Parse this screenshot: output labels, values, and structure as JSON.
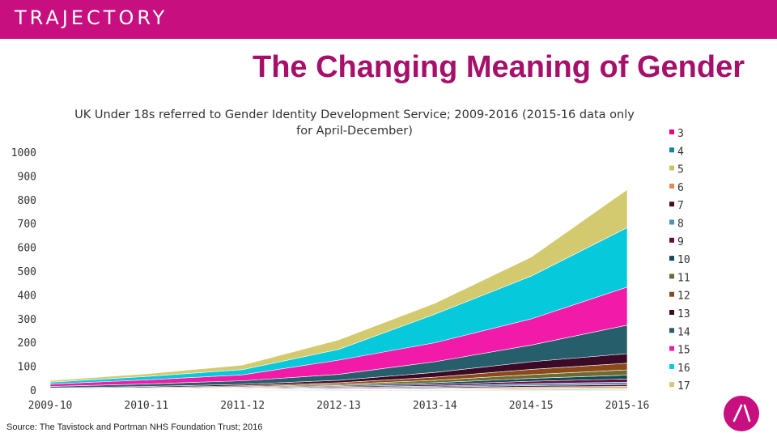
{
  "brand": {
    "name": "TRAJECTORY"
  },
  "page": {
    "title": "The Changing Meaning of Gender"
  },
  "source": "Source: The Tavistock and Portman NHS Foundation Trust; 2016",
  "colors": {
    "topbar": "#c80f7f",
    "title": "#a6106b"
  },
  "chart_data": {
    "type": "area",
    "stacked": true,
    "title": "UK Under 18s referred to Gender Identity Development Service; 2009-2016 (2015-16 data only for April-December)",
    "categories": [
      "2009-10",
      "2010-11",
      "2011-12",
      "2012-13",
      "2013-14",
      "2014-15",
      "2015-16"
    ],
    "xlabel": "",
    "ylabel": "",
    "ylim": [
      0,
      1000
    ],
    "yticks": [
      0,
      100,
      200,
      300,
      400,
      500,
      600,
      700,
      800,
      900,
      1000
    ],
    "grid": false,
    "legend_position": "right",
    "series": [
      {
        "name": "3",
        "color": "#e6007e",
        "values": [
          0,
          0,
          0,
          1,
          1,
          1,
          2
        ]
      },
      {
        "name": "4",
        "color": "#17869b",
        "values": [
          0,
          0,
          0,
          1,
          2,
          3,
          3
        ]
      },
      {
        "name": "5",
        "color": "#c9c26a",
        "values": [
          0,
          0,
          1,
          1,
          2,
          4,
          5
        ]
      },
      {
        "name": "6",
        "color": "#e08a54",
        "values": [
          0,
          1,
          1,
          2,
          3,
          5,
          6
        ]
      },
      {
        "name": "7",
        "color": "#4a0c2b",
        "values": [
          1,
          1,
          2,
          3,
          4,
          6,
          7
        ]
      },
      {
        "name": "8",
        "color": "#4f93b9",
        "values": [
          1,
          1,
          2,
          3,
          5,
          8,
          10
        ]
      },
      {
        "name": "9",
        "color": "#6b0b3f",
        "values": [
          1,
          1,
          2,
          4,
          6,
          10,
          14
        ]
      },
      {
        "name": "10",
        "color": "#0e4c5a",
        "values": [
          1,
          2,
          3,
          4,
          8,
          12,
          16
        ]
      },
      {
        "name": "11",
        "color": "#6f6a2f",
        "values": [
          1,
          2,
          3,
          5,
          10,
          16,
          22
        ]
      },
      {
        "name": "12",
        "color": "#8a4a1a",
        "values": [
          2,
          3,
          4,
          7,
          13,
          22,
          28
        ]
      },
      {
        "name": "13",
        "color": "#3c0a26",
        "values": [
          2,
          4,
          6,
          10,
          20,
          32,
          40
        ]
      },
      {
        "name": "14",
        "color": "#275e6c",
        "values": [
          6,
          11,
          15,
          25,
          45,
          70,
          120
        ]
      },
      {
        "name": "15",
        "color": "#f21aa8",
        "values": [
          10,
          17,
          25,
          60,
          80,
          110,
          160
        ]
      },
      {
        "name": "16",
        "color": "#06c9dc",
        "values": [
          8,
          14,
          22,
          45,
          120,
          180,
          250
        ]
      },
      {
        "name": "17",
        "color": "#d3c96e",
        "values": [
          7,
          11,
          19,
          40,
          46,
          80,
          160
        ]
      }
    ]
  }
}
